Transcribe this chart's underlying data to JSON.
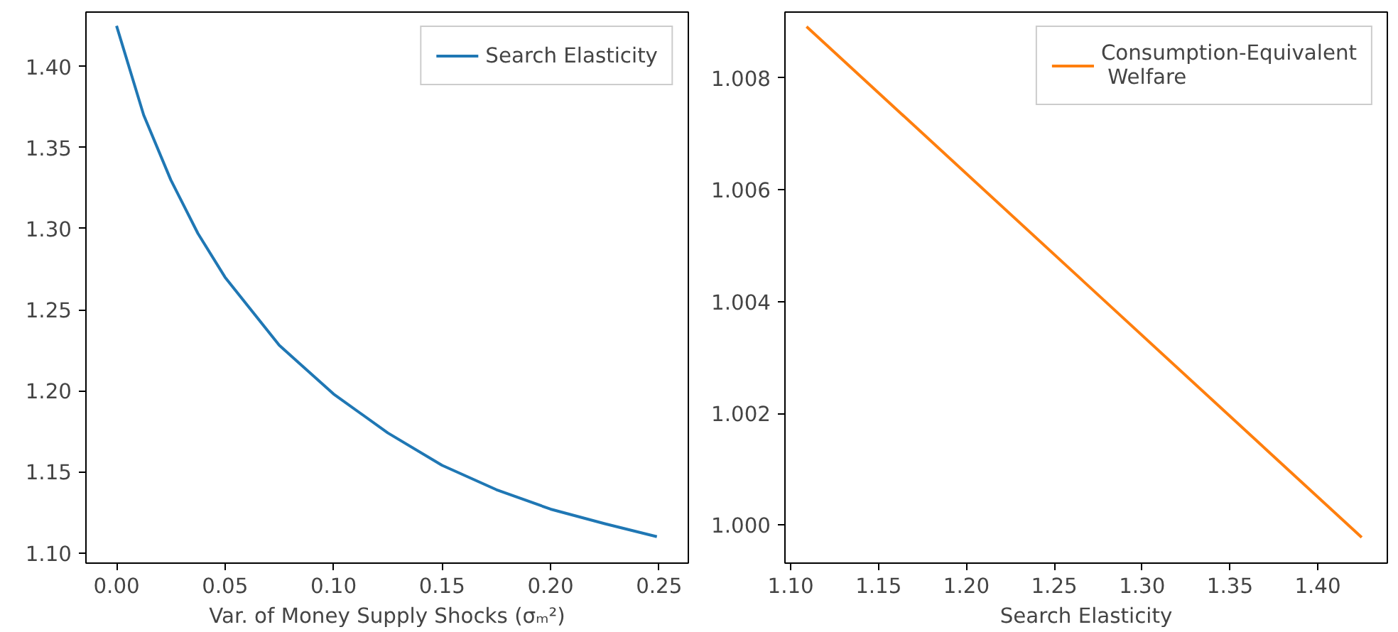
{
  "chart_data": [
    {
      "type": "line",
      "xlabel": "Var. of Money Supply Shocks (σₘ²)",
      "legend": "top right",
      "grid": false,
      "x": [
        0,
        0.0125,
        0.025,
        0.0375,
        0.05,
        0.075,
        0.1,
        0.125,
        0.15,
        0.175,
        0.2,
        0.225,
        0.249
      ],
      "series": [
        {
          "name": "Search Elasticity",
          "color": "#1f77b4",
          "values": [
            1.425,
            1.37,
            1.33,
            1.297,
            1.27,
            1.228,
            1.198,
            1.174,
            1.154,
            1.139,
            1.127,
            1.118,
            1.11
          ]
        }
      ],
      "xlim": [
        -0.0141,
        0.2635
      ],
      "ylim": [
        1.0937,
        1.4335
      ],
      "xticks": [
        {
          "value": 0,
          "label": "0.00"
        },
        {
          "value": 0.05,
          "label": "0.05"
        },
        {
          "value": 0.1,
          "label": "0.10"
        },
        {
          "value": 0.15,
          "label": "0.15"
        },
        {
          "value": 0.2,
          "label": "0.20"
        },
        {
          "value": 0.25,
          "label": "0.25"
        }
      ],
      "yticks": [
        {
          "value": 1.1,
          "label": "1.10"
        },
        {
          "value": 1.15,
          "label": "1.15"
        },
        {
          "value": 1.2,
          "label": "1.20"
        },
        {
          "value": 1.25,
          "label": "1.25"
        },
        {
          "value": 1.3,
          "label": "1.30"
        },
        {
          "value": 1.35,
          "label": "1.35"
        },
        {
          "value": 1.4,
          "label": "1.40"
        }
      ]
    },
    {
      "type": "line",
      "xlabel": "Search Elasticity",
      "legend": "top right",
      "grid": false,
      "x": [
        1.109,
        1.267,
        1.425
      ],
      "series": [
        {
          "name": "Consumption-Equivalent\n Welfare",
          "color": "#ff7f0e",
          "values": [
            1.00892,
            1.00435,
            0.99978
          ]
        }
      ],
      "xlim": [
        1.0967,
        1.4396
      ],
      "ylim": [
        0.99932,
        1.00918
      ],
      "xticks": [
        {
          "value": 1.1,
          "label": "1.10"
        },
        {
          "value": 1.15,
          "label": "1.15"
        },
        {
          "value": 1.2,
          "label": "1.20"
        },
        {
          "value": 1.25,
          "label": "1.25"
        },
        {
          "value": 1.3,
          "label": "1.30"
        },
        {
          "value": 1.35,
          "label": "1.35"
        },
        {
          "value": 1.4,
          "label": "1.40"
        }
      ],
      "yticks": [
        {
          "value": 1.0,
          "label": "1.000"
        },
        {
          "value": 1.002,
          "label": "1.002"
        },
        {
          "value": 1.004,
          "label": "1.004"
        },
        {
          "value": 1.006,
          "label": "1.006"
        },
        {
          "value": 1.008,
          "label": "1.008"
        }
      ]
    }
  ]
}
